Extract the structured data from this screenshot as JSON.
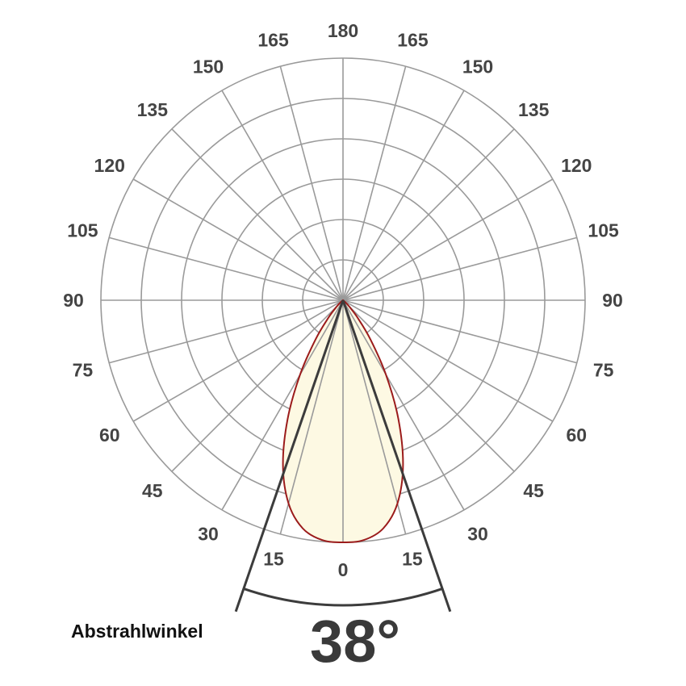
{
  "chart_data": {
    "type": "polar",
    "title": "",
    "angle_ticks": [
      0,
      15,
      30,
      45,
      60,
      75,
      90,
      105,
      120,
      135,
      150,
      165,
      180
    ],
    "angle_range": [
      0,
      180
    ],
    "radial_grid_circles": 6,
    "grid": true,
    "radial_max": 100,
    "symmetric": true,
    "series": [
      {
        "angles": [
          0,
          5,
          10,
          15,
          20,
          25,
          30,
          35,
          40,
          45,
          50,
          55,
          60
        ],
        "values": [
          100,
          99.4,
          95.7,
          86.9,
          72.5,
          54.1,
          35.4,
          19.8,
          9.2,
          3.5,
          1.1,
          0.3,
          0
        ]
      }
    ],
    "beam_angle": 38,
    "colors": {
      "grid": "#9a9a9a",
      "curve_stroke": "#9b1b1b",
      "curve_fill": "#fdf9e3",
      "beam_lines": "#3c3c3c",
      "tick_text": "#444444"
    }
  },
  "labels": {
    "caption": "Abstrahlwinkel",
    "beam_angle_text": "38°"
  }
}
